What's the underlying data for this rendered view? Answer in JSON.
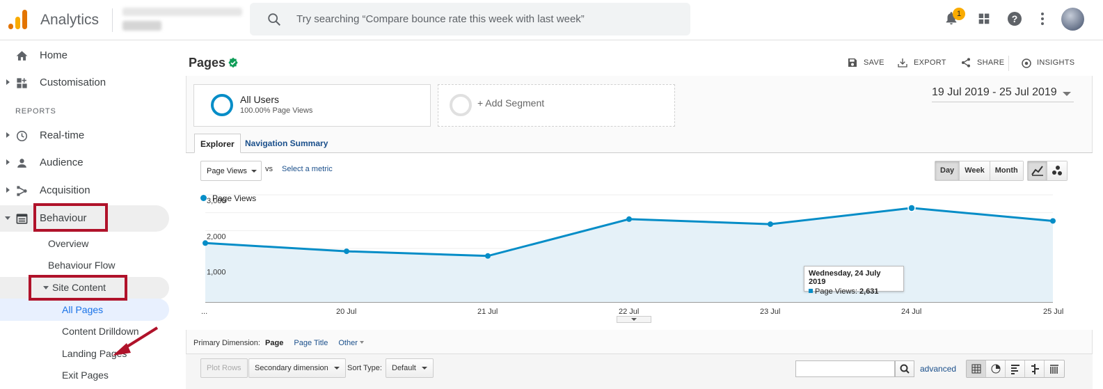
{
  "header": {
    "app_name": "Analytics",
    "search_placeholder": "Try searching “Compare bounce rate this week with last week”",
    "notification_count": "1"
  },
  "sidebar": {
    "home": "Home",
    "customisation": "Customisation",
    "reports_heading": "REPORTS",
    "realtime": "Real-time",
    "audience": "Audience",
    "acquisition": "Acquisition",
    "behaviour": "Behaviour",
    "behaviour_items": {
      "overview": "Overview",
      "behaviour_flow": "Behaviour Flow",
      "site_content": "Site Content",
      "all_pages": "All Pages",
      "content_drilldown": "Content Drilldown",
      "landing_pages": "Landing Pages",
      "exit_pages": "Exit Pages"
    }
  },
  "report": {
    "title": "Pages",
    "actions": {
      "save": "SAVE",
      "export": "EXPORT",
      "share": "SHARE",
      "insights": "INSIGHTS"
    },
    "segments": {
      "all_users": "All Users",
      "all_users_sub": "100.00% Page Views",
      "add_segment": "+ Add Segment"
    },
    "date_range": "19 Jul 2019 - 25 Jul 2019",
    "tabs": {
      "explorer": "Explorer",
      "navigation_summary": "Navigation Summary"
    },
    "metric_select": "Page Views",
    "vs": "vs",
    "select_metric": "Select a metric",
    "granularity": {
      "day": "Day",
      "week": "Week",
      "month": "Month",
      "active": "Day"
    },
    "tooltip": {
      "date": "Wednesday, 24 July 2019",
      "label": "Page Views:",
      "value": "2,631"
    },
    "primary_dimension": {
      "label": "Primary Dimension:",
      "current": "Page",
      "page_title": "Page Title",
      "other": "Other"
    },
    "table_toolbar": {
      "plot_rows": "Plot Rows",
      "secondary_dimension": "Secondary dimension",
      "sort_type_label": "Sort Type:",
      "sort_type_value": "Default",
      "advanced": "advanced"
    }
  },
  "chart_data": {
    "type": "area",
    "series": [
      {
        "name": "Page Views",
        "values": [
          1650,
          1420,
          1290,
          2320,
          2180,
          2631,
          2270
        ]
      }
    ],
    "x": [
      "...",
      "20 Jul",
      "21 Jul",
      "22 Jul",
      "23 Jul",
      "24 Jul",
      "25 Jul"
    ],
    "y_ticks": [
      "1,000",
      "2,000",
      "3,000"
    ],
    "ylim": [
      0,
      3000
    ],
    "line_color": "#058dc7",
    "fill_color": "#e5f1f8",
    "grid": true,
    "legend": "top-left"
  },
  "colors": {
    "accent": "#058dc7",
    "highlight_box": "#b0122a",
    "link": "#1a4f8b",
    "badge": "#f9ab00"
  }
}
